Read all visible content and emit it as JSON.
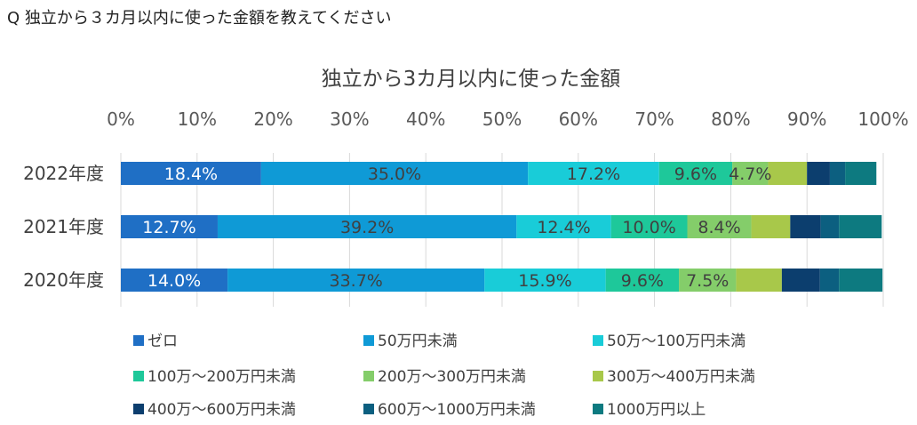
{
  "question": "Q  独立から３カ月以内に使った金額を教えてください",
  "chart_data": {
    "type": "bar",
    "orientation": "horizontal",
    "stacked": "percent",
    "title": "独立から3カ月以内に使った金額",
    "categories": [
      "2022年度",
      "2021年度",
      "2020年度"
    ],
    "x_ticks": [
      "0%",
      "10%",
      "20%",
      "30%",
      "40%",
      "50%",
      "60%",
      "70%",
      "80%",
      "90%",
      "100%"
    ],
    "xlim": [
      0,
      100
    ],
    "legend_position": "bottom",
    "series": [
      {
        "name": "ゼロ",
        "color": "#1f6fc5",
        "values": [
          18.4,
          12.7,
          14.0
        ],
        "labels": [
          "18.4%",
          "12.7%",
          "14.0%"
        ],
        "label_color": "#ffffff"
      },
      {
        "name": "50万円未満",
        "color": "#0f9ad6",
        "values": [
          35.0,
          39.2,
          33.7
        ],
        "labels": [
          "35.0%",
          "39.2%",
          "33.7%"
        ],
        "label_color": "#404040"
      },
      {
        "name": "50万～100万円未満",
        "color": "#19ccd8",
        "values": [
          17.2,
          12.4,
          15.9
        ],
        "labels": [
          "17.2%",
          "12.4%",
          "15.9%"
        ],
        "label_color": "#404040"
      },
      {
        "name": "100万～200万円未満",
        "color": "#1ec89a",
        "values": [
          9.6,
          10.0,
          9.6
        ],
        "labels": [
          "9.6%",
          "10.0%",
          "9.6%"
        ],
        "label_color": "#404040"
      },
      {
        "name": "200万～300万円未満",
        "color": "#84cd6a",
        "values": [
          4.7,
          8.4,
          7.5
        ],
        "labels": [
          "4.7%",
          "8.4%",
          "7.5%"
        ],
        "label_color": "#404040"
      },
      {
        "name": "300万～400万円未満",
        "color": "#a8c84a",
        "values": [
          5.1,
          5.1,
          6.0
        ],
        "labels": [
          "",
          "",
          ""
        ],
        "label_color": "#404040"
      },
      {
        "name": "400万～600万円未満",
        "color": "#0c3e6e",
        "values": [
          3.0,
          4.0,
          5.0
        ],
        "labels": [
          "",
          "",
          ""
        ],
        "label_color": "#ffffff"
      },
      {
        "name": "600万～1000万円未満",
        "color": "#0c5f80",
        "values": [
          2.0,
          2.4,
          2.5
        ],
        "labels": [
          "",
          "",
          ""
        ],
        "label_color": "#ffffff"
      },
      {
        "name": "1000万円以上",
        "color": "#0d7a80",
        "values": [
          4.1,
          5.6,
          5.7
        ],
        "labels": [
          "",
          "",
          ""
        ],
        "label_color": "#ffffff"
      }
    ]
  }
}
